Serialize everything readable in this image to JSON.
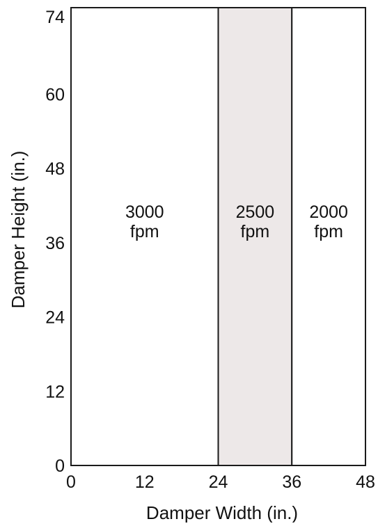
{
  "chart_data": {
    "type": "bar",
    "x_axis": {
      "label": "Damper Width (in.)",
      "min": 0,
      "max": 48,
      "ticks": [
        0,
        12,
        24,
        36,
        48
      ],
      "tick_labels": [
        "0",
        "12",
        "24",
        "36",
        "48"
      ]
    },
    "y_axis": {
      "label": "Damper Height (in.)",
      "min": 0,
      "max": 74,
      "ticks": [
        0,
        12,
        24,
        36,
        48,
        60,
        74
      ],
      "tick_labels": [
        "0",
        "12",
        "24",
        "36",
        "48",
        "60",
        "74"
      ]
    },
    "regions": [
      {
        "x_start": 0,
        "x_end": 24,
        "y_start": 0,
        "y_end": 74,
        "value": "3000",
        "unit": "fpm",
        "fill": "#ffffff"
      },
      {
        "x_start": 24,
        "x_end": 36,
        "y_start": 0,
        "y_end": 74,
        "value": "2500",
        "unit": "fpm",
        "fill": "#ede8e8"
      },
      {
        "x_start": 36,
        "x_end": 48,
        "y_start": 0,
        "y_end": 74,
        "value": "2000",
        "unit": "fpm",
        "fill": "#ffffff"
      }
    ],
    "grid": false
  },
  "colors": {
    "frame": "#1a1a1a",
    "highlight_fill": "#ede8e8",
    "text": "#111111"
  }
}
